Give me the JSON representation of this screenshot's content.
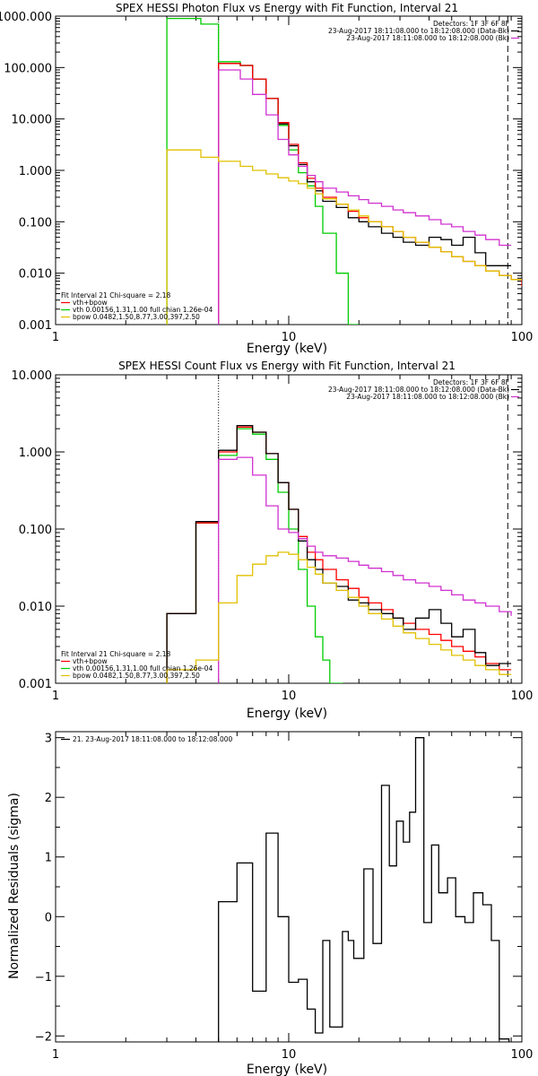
{
  "chart_data": [
    {
      "type": "line",
      "step": true,
      "title": "SPEX HESSI Photon Flux vs Energy with Fit Function, Interval 21",
      "xlabel": "Energy (keV)",
      "ylabel": "",
      "xscale": "log",
      "yscale": "log",
      "xlim": [
        1,
        100
      ],
      "ylim": [
        0.001,
        1000
      ],
      "xticks": [
        1,
        10,
        100
      ],
      "xtick_labels": [
        "1",
        "10",
        "100"
      ],
      "yticks": [
        0.001,
        0.01,
        0.1,
        1,
        10,
        100,
        1000
      ],
      "ytick_labels": [
        "0.001",
        "0.010",
        "0.100",
        "1.000",
        "10.000",
        "100.000",
        "1000.000"
      ],
      "vlines": [
        {
          "x": 5.0,
          "style": "dotted"
        },
        {
          "x": 87,
          "style": "dashed"
        }
      ],
      "legend_top_right": {
        "position": "top-right",
        "lines": [
          {
            "text": "Detectors: 1F 3F 6F 8F",
            "color": "",
            "swatch": false
          },
          {
            "text": "23-Aug-2017 18:11:08.000 to 18:12:08.000 (Data-Bk)",
            "color": "#000000",
            "swatch": true
          },
          {
            "text": "23-Aug-2017 18:11:08.000 to 18:12:08.000 (Bk)",
            "color": "#d030d0",
            "swatch": true
          }
        ]
      },
      "legend_bottom_left": {
        "position": "bottom-left",
        "lines": [
          {
            "text": "Fit Interval 21    Chi-square = 2.18",
            "color": "",
            "swatch": false
          },
          {
            "text": "vth+bpow",
            "color": "#ff0000",
            "swatch": true
          },
          {
            "text": "vth 0.00156,1.31,1.00  full chian 1.26e-04",
            "color": "#00cc00",
            "swatch": true
          },
          {
            "text": "bpow 0.0482,1.50,8.77,3.00,397,2.50",
            "color": "#e0c000",
            "swatch": true
          }
        ]
      },
      "series": [
        {
          "color": "#00cc00",
          "edges": [
            3,
            4.2,
            5,
            6.2,
            7,
            8,
            9,
            10,
            11,
            12,
            13,
            14,
            16,
            18,
            20
          ],
          "values": [
            900,
            700,
            130,
            110,
            60,
            25,
            7.5,
            2.5,
            0.9,
            0.5,
            0.2,
            0.06,
            0.01,
            0.001
          ]
        },
        {
          "color": "#000000",
          "edges": [
            5,
            6.2,
            7,
            8,
            9,
            10,
            11,
            12,
            13,
            14,
            16,
            18,
            20,
            22,
            25,
            28,
            31,
            35,
            40,
            45,
            50,
            56,
            63,
            70,
            80,
            90
          ],
          "values": [
            120,
            110,
            60,
            25,
            8,
            3,
            1.3,
            0.6,
            0.4,
            0.25,
            0.19,
            0.12,
            0.1,
            0.08,
            0.06,
            0.05,
            0.04,
            0.035,
            0.05,
            0.045,
            0.035,
            0.05,
            0.025,
            0.014,
            0.014
          ]
        },
        {
          "color": "#ff0000",
          "edges": [
            5,
            6.2,
            7,
            8,
            9,
            10,
            11,
            12,
            13,
            14,
            16,
            18,
            20,
            22,
            25,
            28,
            31,
            35,
            40,
            45,
            50,
            56,
            63,
            70,
            80,
            90,
            100
          ],
          "values": [
            120,
            110,
            60,
            25,
            8.5,
            3.2,
            1.4,
            0.7,
            0.45,
            0.3,
            0.22,
            0.16,
            0.12,
            0.1,
            0.08,
            0.065,
            0.05,
            0.04,
            0.032,
            0.026,
            0.021,
            0.017,
            0.014,
            0.011,
            0.009,
            0.0075,
            0.0055
          ]
        },
        {
          "color": "#d030d0",
          "edges": [
            5,
            6.2,
            7,
            8,
            9,
            10,
            11,
            12,
            13,
            14,
            16,
            18,
            20,
            22,
            25,
            28,
            31,
            35,
            40,
            45,
            50,
            56,
            63,
            70,
            80,
            90
          ],
          "values": [
            90,
            60,
            30,
            12,
            4,
            2,
            1.2,
            0.8,
            0.6,
            0.45,
            0.38,
            0.32,
            0.27,
            0.23,
            0.2,
            0.17,
            0.15,
            0.13,
            0.11,
            0.09,
            0.08,
            0.065,
            0.055,
            0.045,
            0.035
          ]
        },
        {
          "color": "#e0c000",
          "edges": [
            3,
            4.2,
            5,
            6.2,
            7,
            8,
            9,
            10,
            11,
            12,
            13,
            14,
            16,
            18,
            20,
            22,
            25,
            28,
            31,
            35,
            40,
            45,
            50,
            56,
            63,
            70,
            80,
            90,
            100
          ],
          "values": [
            2.5,
            1.8,
            1.5,
            1.2,
            1.0,
            0.85,
            0.72,
            0.62,
            0.55,
            0.45,
            0.35,
            0.28,
            0.22,
            0.17,
            0.13,
            0.1,
            0.08,
            0.065,
            0.05,
            0.04,
            0.032,
            0.026,
            0.021,
            0.017,
            0.014,
            0.011,
            0.009,
            0.0075
          ]
        }
      ]
    },
    {
      "type": "line",
      "step": true,
      "title": "SPEX HESSI Count Flux vs Energy with Fit Function, Interval 21",
      "xlabel": "Energy (keV)",
      "ylabel": "",
      "xscale": "log",
      "yscale": "log",
      "xlim": [
        1,
        100
      ],
      "ylim": [
        0.001,
        10
      ],
      "xticks": [
        1,
        10,
        100
      ],
      "xtick_labels": [
        "1",
        "10",
        "100"
      ],
      "yticks": [
        0.001,
        0.01,
        0.1,
        1,
        10
      ],
      "ytick_labels": [
        "0.001",
        "0.010",
        "0.100",
        "1.000",
        "10.000"
      ],
      "vlines": [
        {
          "x": 5.0,
          "style": "dotted"
        },
        {
          "x": 87,
          "style": "dashed"
        }
      ],
      "legend_top_right": {
        "position": "top-right",
        "lines": [
          {
            "text": "Detectors: 1F 3F 6F 8F",
            "color": "",
            "swatch": false
          },
          {
            "text": "23-Aug-2017 18:11:08.000 to 18:12:08.000 (Data-Bk)",
            "color": "#000000",
            "swatch": true
          },
          {
            "text": "23-Aug-2017 18:11:08.000 to 18:12:08.000 (Bk)",
            "color": "#d030d0",
            "swatch": true
          }
        ]
      },
      "legend_bottom_left": {
        "position": "bottom-left",
        "lines": [
          {
            "text": "Fit Interval 21    Chi-square = 2.18",
            "color": "",
            "swatch": false
          },
          {
            "text": "vth+bpow",
            "color": "#ff0000",
            "swatch": true
          },
          {
            "text": "vth 0.00156,1.31,1.00  full chian 1.26e-04",
            "color": "#00cc00",
            "swatch": true
          },
          {
            "text": "bpow 0.0482,1.50,8.77,3.00,397,2.50",
            "color": "#e0c000",
            "swatch": true
          }
        ]
      },
      "series": [
        {
          "color": "#00cc00",
          "edges": [
            3,
            4,
            5,
            6,
            7,
            8,
            9,
            10,
            11,
            12,
            13,
            14,
            15,
            17,
            20
          ],
          "values": [
            0.008,
            0.12,
            0.9,
            2.0,
            1.7,
            0.8,
            0.3,
            0.1,
            0.03,
            0.01,
            0.004,
            0.002,
            0.001,
            0.0006
          ]
        },
        {
          "color": "#ff0000",
          "edges": [
            3,
            4,
            5,
            6,
            7,
            8,
            9,
            10,
            11,
            12,
            13,
            14,
            16,
            18,
            20,
            22,
            25,
            28,
            31,
            35,
            40,
            45,
            50,
            56,
            63,
            70,
            80,
            90
          ],
          "values": [
            0.008,
            0.12,
            1.0,
            2.1,
            1.8,
            0.95,
            0.4,
            0.18,
            0.08,
            0.05,
            0.04,
            0.03,
            0.022,
            0.017,
            0.013,
            0.011,
            0.009,
            0.007,
            0.006,
            0.005,
            0.0043,
            0.0036,
            0.003,
            0.0026,
            0.0022,
            0.0018,
            0.0015
          ]
        },
        {
          "color": "#000000",
          "edges": [
            3,
            4,
            5,
            6,
            7,
            8,
            9,
            10,
            11,
            12,
            13,
            14,
            16,
            18,
            20,
            22,
            25,
            28,
            31,
            35,
            40,
            45,
            50,
            56,
            63,
            70,
            80,
            90
          ],
          "values": [
            0.008,
            0.125,
            1.05,
            2.2,
            1.8,
            0.95,
            0.4,
            0.18,
            0.07,
            0.04,
            0.03,
            0.02,
            0.018,
            0.012,
            0.011,
            0.009,
            0.008,
            0.007,
            0.005,
            0.007,
            0.009,
            0.006,
            0.004,
            0.005,
            0.0025,
            0.0017,
            0.0018
          ]
        },
        {
          "color": "#d030d0",
          "edges": [
            5,
            6,
            7,
            8,
            9,
            10,
            11,
            12,
            13,
            14,
            16,
            18,
            20,
            22,
            25,
            28,
            31,
            35,
            40,
            45,
            50,
            56,
            63,
            70,
            80,
            90
          ],
          "values": [
            0.8,
            0.85,
            0.5,
            0.2,
            0.1,
            0.09,
            0.075,
            0.06,
            0.05,
            0.045,
            0.042,
            0.038,
            0.034,
            0.031,
            0.028,
            0.025,
            0.022,
            0.02,
            0.018,
            0.016,
            0.014,
            0.012,
            0.011,
            0.01,
            0.0085,
            0.0075
          ]
        },
        {
          "color": "#e0c000",
          "edges": [
            3,
            4,
            5,
            6,
            7,
            8,
            9,
            10,
            11,
            12,
            13,
            14,
            16,
            18,
            20,
            22,
            25,
            28,
            31,
            35,
            40,
            45,
            50,
            56,
            63,
            70,
            80,
            90
          ],
          "values": [
            0.0015,
            0.002,
            0.011,
            0.025,
            0.035,
            0.045,
            0.05,
            0.047,
            0.04,
            0.032,
            0.026,
            0.02,
            0.016,
            0.013,
            0.01,
            0.008,
            0.0068,
            0.0055,
            0.0045,
            0.0038,
            0.0032,
            0.0027,
            0.0023,
            0.002,
            0.0017,
            0.0015,
            0.0013
          ]
        }
      ]
    },
    {
      "type": "line",
      "step": true,
      "title": "",
      "xlabel": "Energy (keV)",
      "ylabel": "Normalized Residuals (sigma)",
      "xscale": "log",
      "yscale": "linear",
      "xlim": [
        1,
        100
      ],
      "ylim": [
        -2.1,
        3.1
      ],
      "xticks": [
        1,
        10,
        100
      ],
      "xtick_labels": [
        "1",
        "10",
        "100"
      ],
      "yticks": [
        -2,
        -1,
        0,
        1,
        2,
        3
      ],
      "ytick_labels": [
        "−2",
        "−1",
        "0",
        "1",
        "2",
        "3"
      ],
      "vlines": [],
      "legend_top_left": {
        "position": "top-left",
        "lines": [
          {
            "text": "21. 23-Aug-2017 18:11:08.000 to 18:12:08.000",
            "color": "#000000",
            "swatch": true
          }
        ]
      },
      "series": [
        {
          "color": "#000000",
          "edges": [
            5,
            6,
            7,
            8,
            9,
            10,
            11,
            12,
            13,
            14,
            15,
            17,
            18,
            19,
            21,
            23,
            25,
            27,
            29,
            31,
            33,
            35,
            38,
            41,
            44,
            48,
            52,
            57,
            62,
            68,
            74,
            80,
            88
          ],
          "values": [
            0.25,
            0.9,
            -1.25,
            1.4,
            0.0,
            -1.1,
            -1.05,
            -1.55,
            -1.95,
            -0.4,
            -1.85,
            -0.25,
            -0.4,
            -0.7,
            0.8,
            -0.45,
            2.2,
            0.85,
            1.6,
            1.25,
            1.75,
            3.0,
            -0.1,
            1.2,
            0.4,
            0.65,
            0.0,
            -0.1,
            0.4,
            0.2,
            -0.4,
            -2.05
          ]
        }
      ]
    }
  ]
}
